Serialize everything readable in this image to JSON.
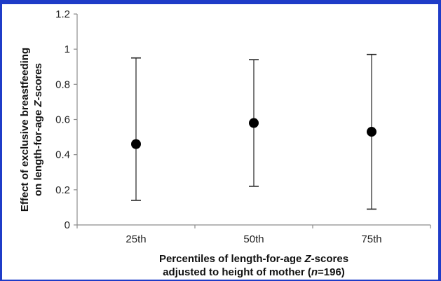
{
  "colors": {
    "frame": "#1f3cc8",
    "marker": "#000000",
    "axis": "#8c8c8c"
  },
  "chart_data": {
    "type": "scatter",
    "categories": [
      "25th",
      "50th",
      "75th"
    ],
    "series": [
      {
        "values": [
          0.46,
          0.58,
          0.53
        ],
        "error_lower": [
          0.14,
          0.22,
          0.09
        ],
        "error_upper": [
          0.95,
          0.94,
          0.97
        ]
      }
    ],
    "ylim": [
      0,
      1.2
    ],
    "yticks": [
      "0",
      "0.2",
      "0.4",
      "0.6",
      "0.8",
      "1",
      "1.2"
    ],
    "grid": false,
    "ylabel_line1": "Effect of exclusive breastfeeding",
    "ylabel_line2_pre": "on length-for-age ",
    "ylabel_line2_italic": "Z",
    "ylabel_line2_post": "-scores",
    "xlabel_line1_pre": "Percentiles of length-for-age ",
    "xlabel_line1_italic": "Z",
    "xlabel_line1_post": "-scores",
    "xlabel_line2_pre": "adjusted to height of mother (",
    "xlabel_line2_italic": "n",
    "xlabel_line2_post": "=196)"
  }
}
